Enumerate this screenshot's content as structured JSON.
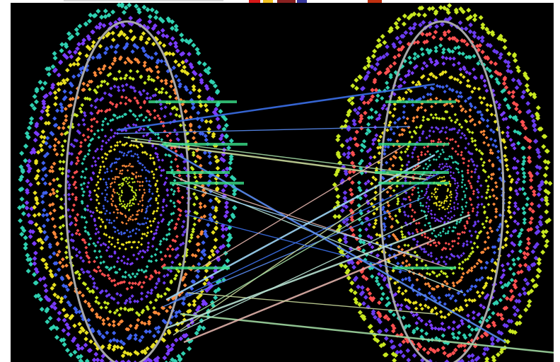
{
  "scene": {
    "background": "#000000",
    "palette": [
      "#6a3cf0",
      "#3f62f0",
      "#2fd0b0",
      "#c8e820",
      "#e8e020",
      "#ff5050",
      "#ff8a3a",
      "#7a3cff"
    ],
    "ring_guide_color": "#a8a8a8",
    "fiber_colors": [
      "#3b6fe8",
      "#5a8cf2",
      "#9ed6a0",
      "#c6d79a",
      "#b6e0d0",
      "#dfb0a8",
      "#9fd6f6"
    ],
    "band_color": "#39e08a",
    "disks": [
      {
        "name": "left"
      },
      {
        "name": "right"
      }
    ]
  }
}
